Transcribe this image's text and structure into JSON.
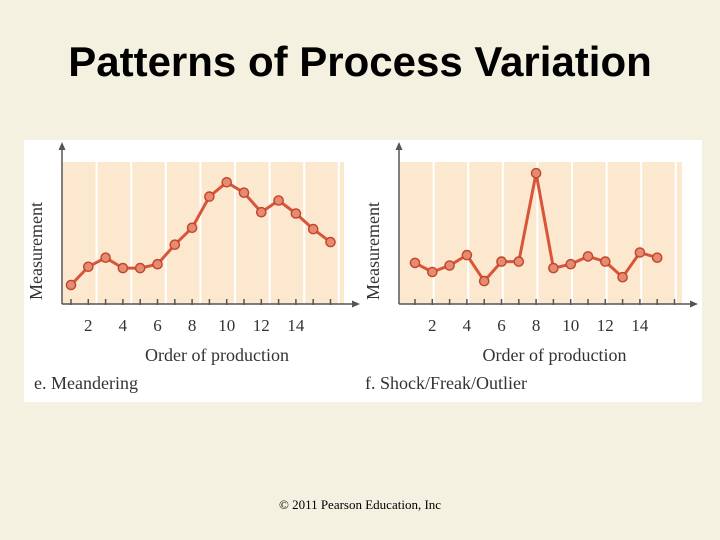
{
  "slide": {
    "title": "Patterns of Process Variation",
    "copyright": "© 2011 Pearson Education, Inc"
  },
  "colors": {
    "background": "#f4f1e1",
    "plot_band": "#fbe8cf",
    "plot_band_alt": "#fdf2e2",
    "line": "#d9553a",
    "marker": "#e48b72",
    "marker_edge": "#c0452c",
    "axis": "#555555"
  },
  "chart_data": [
    {
      "type": "line",
      "title": "e. Meandering",
      "xlabel": "Order of production",
      "ylabel": "Measurement",
      "x_ticks": [
        2,
        4,
        6,
        8,
        10,
        12,
        14
      ],
      "x_range": [
        0,
        16
      ],
      "grid": true,
      "series": [
        {
          "x": [
            1,
            2,
            3,
            4,
            5,
            6,
            7,
            8,
            9,
            10,
            11,
            12,
            13,
            14,
            15,
            16
          ],
          "values": [
            1.0,
            2.4,
            3.1,
            2.3,
            2.3,
            2.6,
            4.1,
            5.4,
            7.8,
            8.9,
            8.1,
            6.6,
            7.5,
            6.5,
            5.3,
            4.3
          ]
        }
      ],
      "ylim": [
        0,
        10
      ]
    },
    {
      "type": "line",
      "title": "f. Shock/Freak/Outlier",
      "xlabel": "Order of production",
      "ylabel": "Measurement",
      "x_ticks": [
        2,
        4,
        6,
        8,
        10,
        12,
        14
      ],
      "x_range": [
        0,
        16
      ],
      "grid": true,
      "series": [
        {
          "x": [
            1,
            2,
            3,
            4,
            5,
            6,
            7,
            8,
            9,
            10,
            11,
            12,
            13,
            14,
            15
          ],
          "values": [
            2.7,
            2.0,
            2.5,
            3.3,
            1.3,
            2.8,
            2.8,
            9.6,
            2.3,
            2.6,
            3.2,
            2.8,
            1.6,
            3.5,
            3.1
          ]
        }
      ],
      "ylim": [
        0,
        10
      ]
    }
  ]
}
